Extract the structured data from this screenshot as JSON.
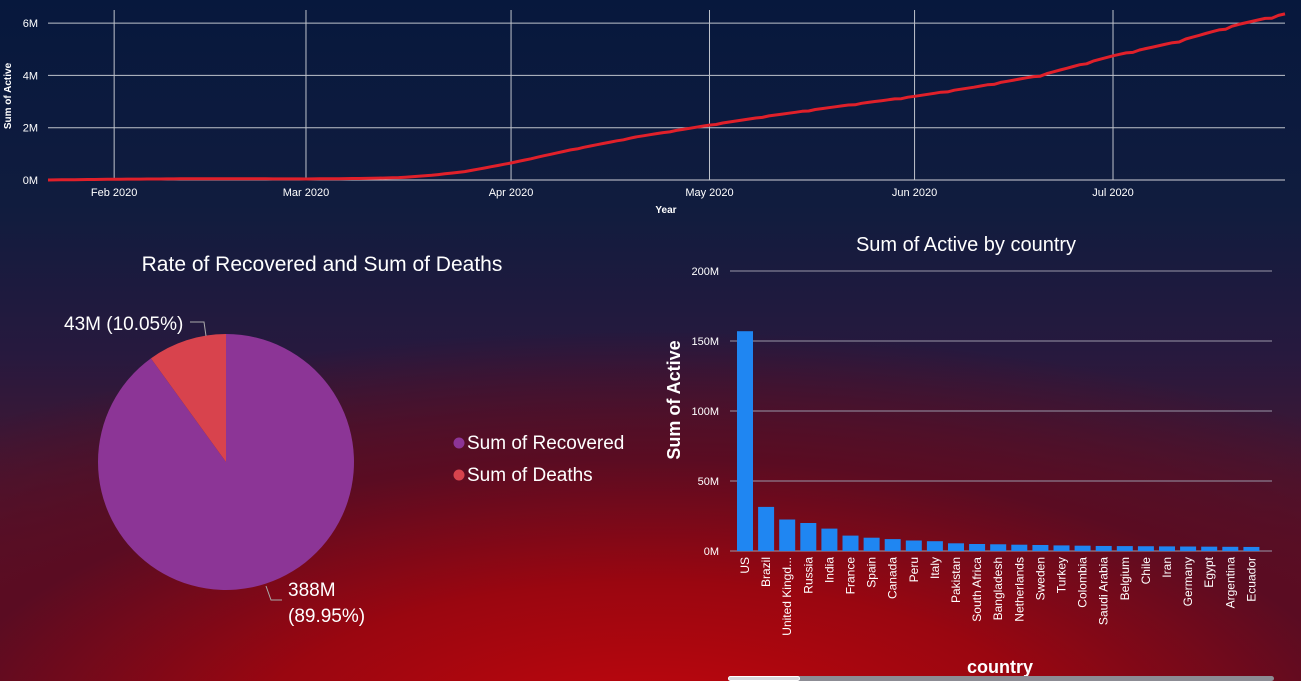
{
  "line_chart": {
    "ylabel": "Sum of Active",
    "xlabel": "Year"
  },
  "pie_chart": {
    "title": "Rate of Recovered and Sum of Deaths",
    "label_recovered_value": "388M",
    "label_recovered_pct": "(89.95%)",
    "label_deaths": "43M (10.05%)"
  },
  "bar_chart": {
    "title": "Sum of Active by country",
    "ylabel": "Sum of Active",
    "xlabel": "country"
  },
  "chart_data": [
    {
      "type": "line",
      "name": "active-over-time",
      "xlabel": "Year",
      "ylabel": "Sum of Active",
      "x_ticks": [
        "Feb 2020",
        "Mar 2020",
        "Apr 2020",
        "May 2020",
        "Jun 2020",
        "Jul 2020"
      ],
      "y_ticks": [
        "0M",
        "2M",
        "4M",
        "6M"
      ],
      "ylim": [
        0,
        6500000
      ],
      "xlim": [
        "2020-01-22",
        "2020-07-27"
      ],
      "grid": true,
      "color": "#e0202a",
      "series": [
        {
          "x": [
            "2020-01-22",
            "2020-02-01",
            "2020-02-15",
            "2020-03-01",
            "2020-03-10",
            "2020-03-15",
            "2020-03-20",
            "2020-03-25",
            "2020-04-01",
            "2020-04-10",
            "2020-04-20",
            "2020-05-01",
            "2020-05-10",
            "2020-05-20",
            "2020-06-01",
            "2020-06-10",
            "2020-06-20",
            "2020-07-01",
            "2020-07-10",
            "2020-07-20",
            "2020-07-27"
          ],
          "y": [
            0,
            30000,
            50000,
            40000,
            60000,
            90000,
            180000,
            320000,
            650000,
            1150000,
            1650000,
            2100000,
            2450000,
            2800000,
            3200000,
            3550000,
            4000000,
            4750000,
            5250000,
            5950000,
            6350000
          ]
        }
      ]
    },
    {
      "type": "pie",
      "name": "recovered-vs-deaths",
      "title": "Rate of Recovered and Sum of Deaths",
      "legend": "right",
      "slices": [
        {
          "label": "Sum of Recovered",
          "value": 388000000,
          "percent": 89.95,
          "color": "#8c3596"
        },
        {
          "label": "Sum of Deaths",
          "value": 43000000,
          "percent": 10.05,
          "color": "#d8434d"
        }
      ]
    },
    {
      "type": "bar",
      "name": "active-by-country",
      "title": "Sum of Active by country",
      "xlabel": "country",
      "ylabel": "Sum of Active",
      "y_ticks": [
        "0M",
        "50M",
        "100M",
        "150M",
        "200M"
      ],
      "ylim": [
        0,
        200000000
      ],
      "grid": true,
      "color": "#1f86f2",
      "categories": [
        "US",
        "Brazil",
        "United Kingd...",
        "Russia",
        "India",
        "France",
        "Spain",
        "Canada",
        "Peru",
        "Italy",
        "Pakistan",
        "South Africa",
        "Bangladesh",
        "Netherlands",
        "Sweden",
        "Turkey",
        "Colombia",
        "Saudi Arabia",
        "Belgium",
        "Chile",
        "Iran",
        "Germany",
        "Egypt",
        "Argentina",
        "Ecuador"
      ],
      "values": [
        157000000,
        31500000,
        22500000,
        20000000,
        16000000,
        11000000,
        9500000,
        8500000,
        7500000,
        7000000,
        5500000,
        5000000,
        4800000,
        4500000,
        4300000,
        4000000,
        3800000,
        3600000,
        3500000,
        3400000,
        3300000,
        3200000,
        3100000,
        3000000,
        2900000
      ]
    }
  ]
}
